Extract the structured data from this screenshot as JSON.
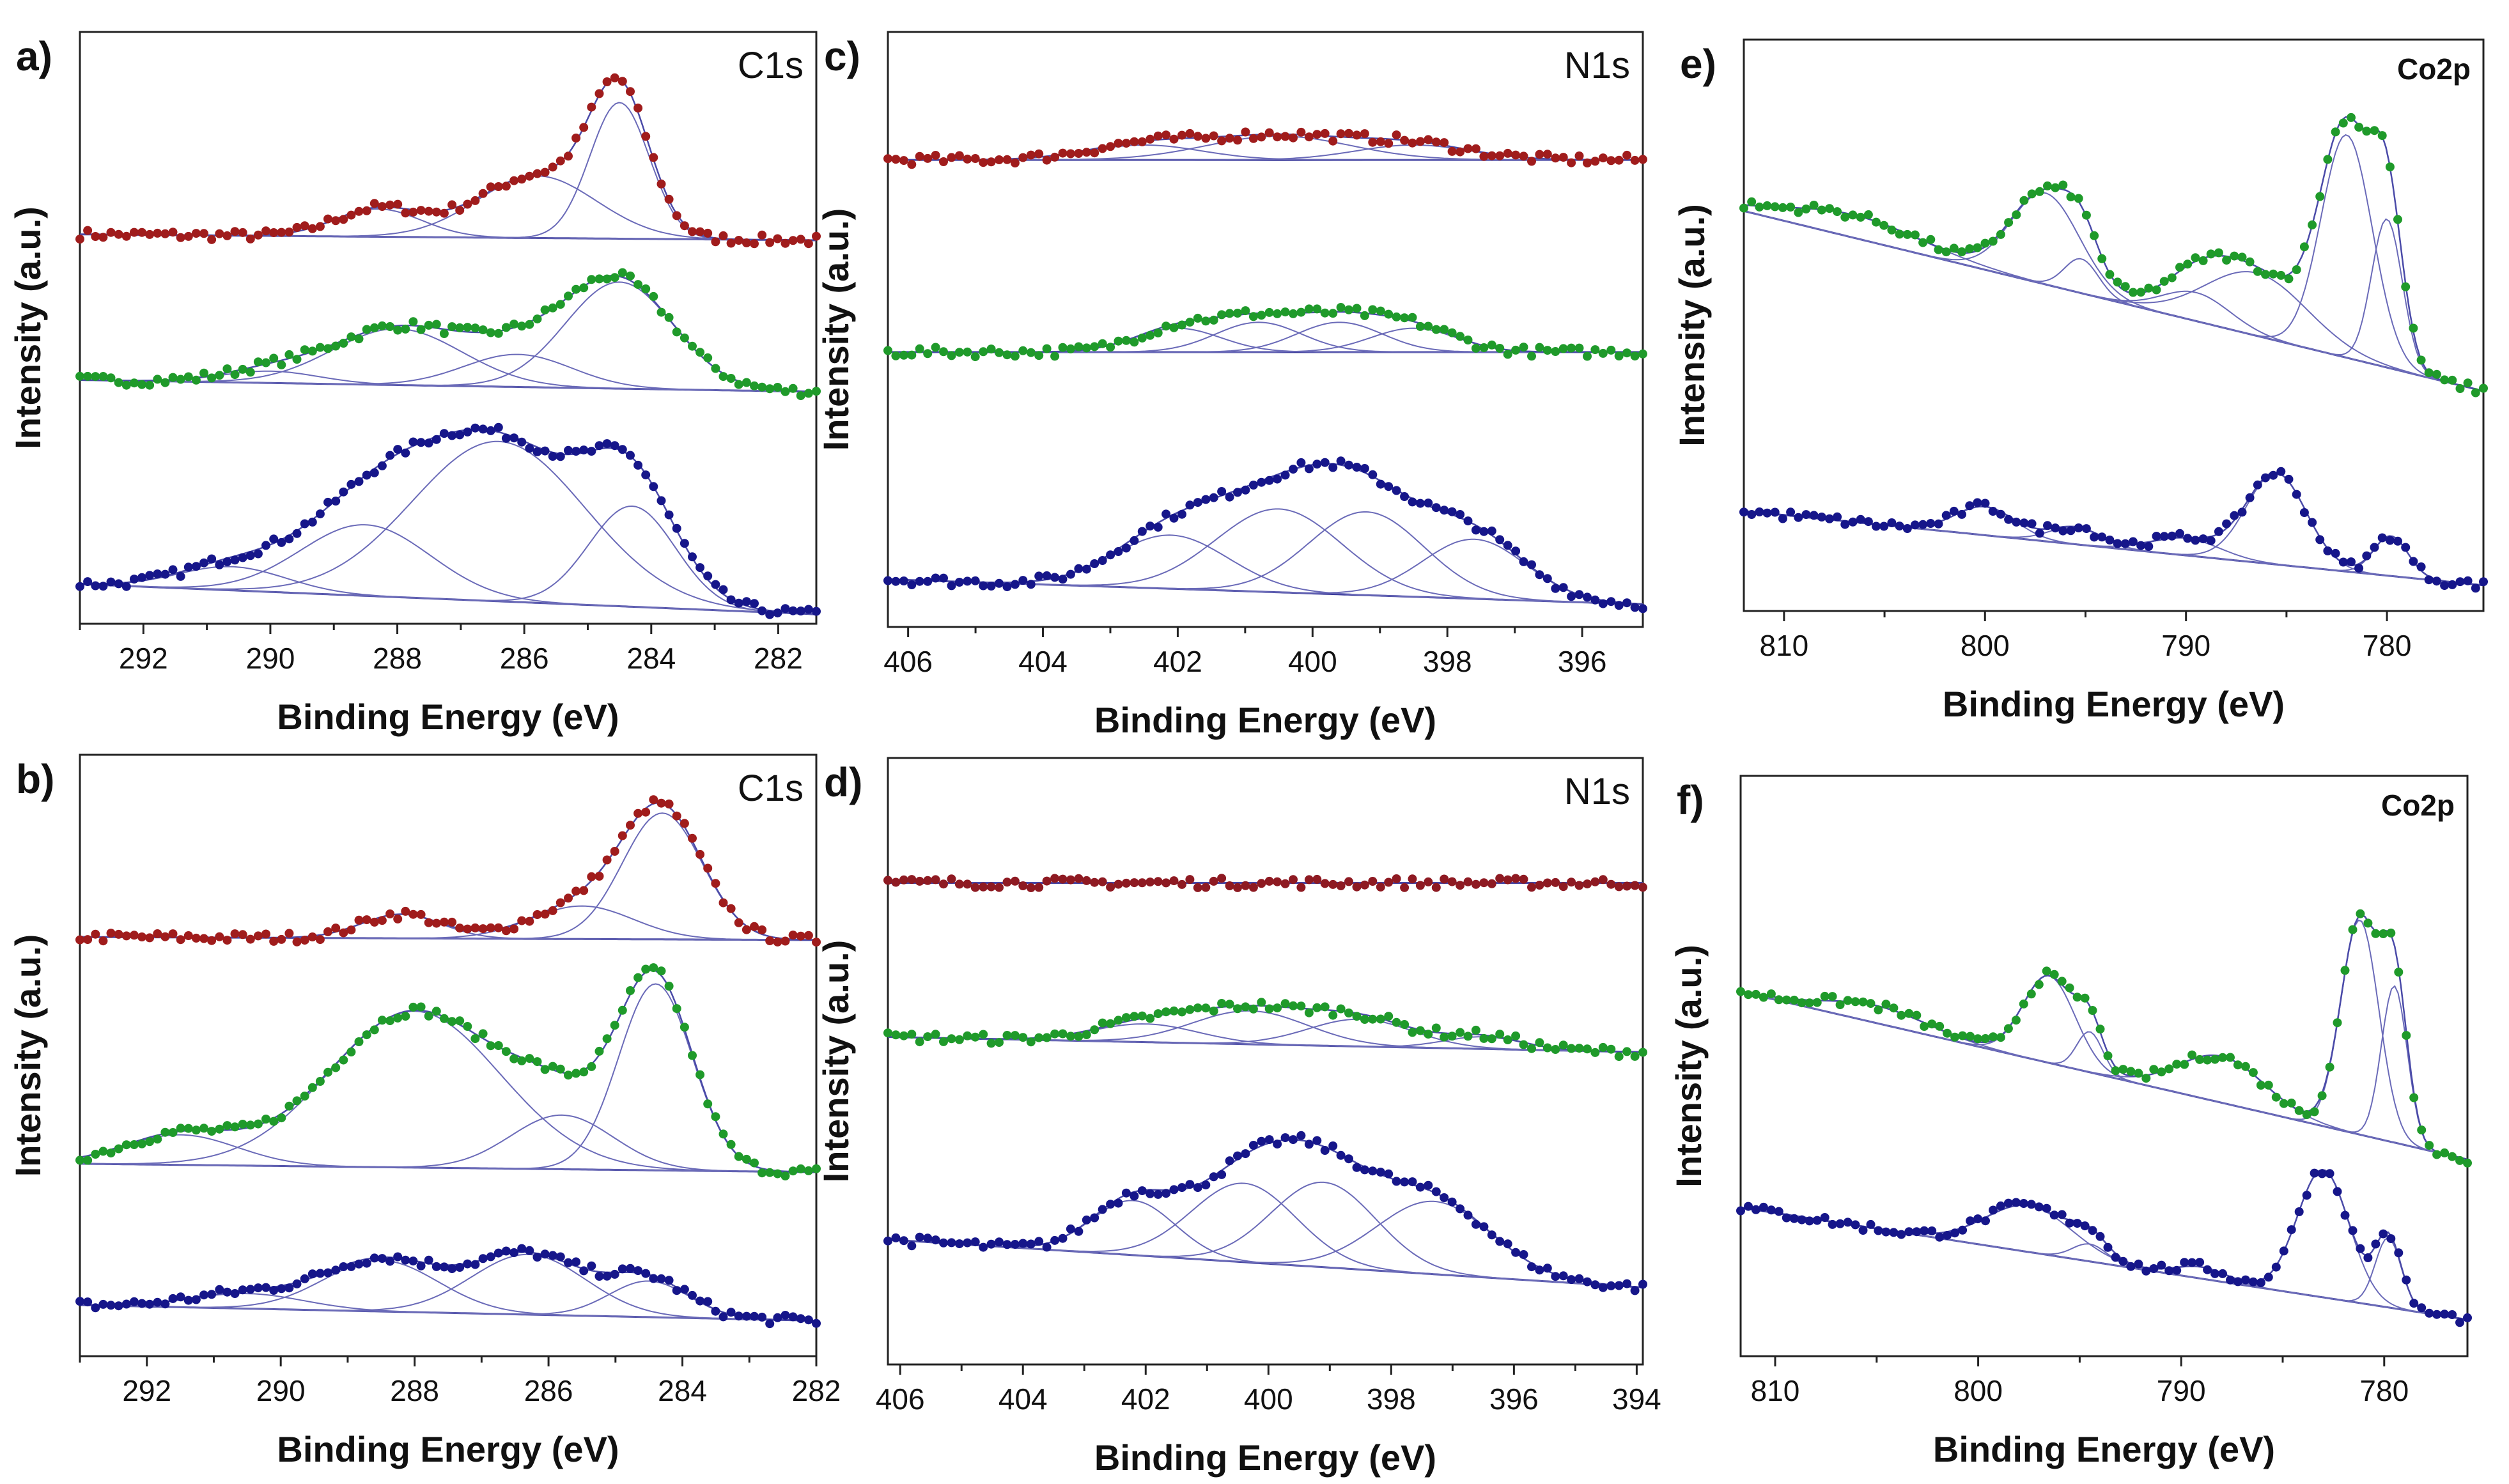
{
  "chart_data": [
    {
      "type": "line",
      "panel_label": "a)",
      "element_label": "C1s",
      "xlabel": "Binding Energy (eV)",
      "ylabel": "Intensity (a.u.)",
      "xlim": [
        293.0,
        281.4
      ],
      "ylim": [
        0,
        100
      ],
      "x_reversed": true,
      "ticks": [
        292,
        290,
        288,
        286,
        284,
        282
      ],
      "grid": false,
      "spectra": [
        {
          "color": "#a01c1c",
          "baseline": [
            65.8,
            64.8
          ],
          "peaks": [
            [
              284.5,
              23,
              1.1
            ],
            [
              285.8,
              10.5,
              2.2
            ],
            [
              288.3,
              4.7,
              1.6
            ]
          ]
        },
        {
          "color": "#1f9a2a",
          "baseline": [
            41.2,
            39.2
          ],
          "peaks": [
            [
              284.5,
              18,
              2.0
            ],
            [
              288.0,
              9.5,
              2.4
            ],
            [
              286.1,
              5.5,
              2.0
            ],
            [
              290.0,
              2,
              1.8
            ]
          ]
        },
        {
          "color": "#16168a",
          "baseline": [
            6.7,
            1.6
          ],
          "peaks": [
            [
              286.4,
              27,
              3.2
            ],
            [
              288.5,
              12,
              2.4
            ],
            [
              284.3,
              17,
              1.6
            ],
            [
              290.6,
              4,
              2.0
            ]
          ]
        }
      ]
    },
    {
      "type": "line",
      "panel_label": "b)",
      "element_label": "C1s",
      "xlabel": "Binding Energy (eV)",
      "ylabel": "Intensity (a.u.)",
      "xlim": [
        293.0,
        282.0
      ],
      "ylim": [
        0,
        100
      ],
      "x_reversed": true,
      "ticks": [
        292,
        290,
        288,
        286,
        284,
        282
      ],
      "grid": false,
      "spectra": [
        {
          "color": "#a01c1c",
          "baseline": [
            69.7,
            69.2
          ],
          "peaks": [
            [
              284.3,
              21,
              1.4
            ],
            [
              285.5,
              5.5,
              1.8
            ],
            [
              288.2,
              4,
              1.4
            ]
          ]
        },
        {
          "color": "#1f9a2a",
          "baseline": [
            32.0,
            30.6
          ],
          "peaks": [
            [
              284.4,
              31,
              1.3
            ],
            [
              288.0,
              26,
              3.0
            ],
            [
              285.8,
              9,
              1.8
            ],
            [
              291.5,
              5,
              2.0
            ]
          ]
        },
        {
          "color": "#16168a",
          "baseline": [
            8.5,
            5.9
          ],
          "peaks": [
            [
              286.3,
              10,
              2.0
            ],
            [
              288.5,
              8.5,
              2.0
            ],
            [
              284.5,
              6,
              1.4
            ],
            [
              290.5,
              2.5,
              2.0
            ]
          ]
        }
      ]
    },
    {
      "type": "line",
      "panel_label": "c)",
      "element_label": "N1s",
      "xlabel": "Binding Energy (eV)",
      "ylabel": "Intensity (a.u.)",
      "xlim": [
        406.3,
        395.1
      ],
      "ylim": [
        0,
        100
      ],
      "x_reversed": true,
      "ticks": [
        406,
        404,
        402,
        400,
        398,
        396
      ],
      "grid": false,
      "spectra": [
        {
          "color": "#a01c1c",
          "baseline": [
            78.5,
            78.5
          ],
          "peaks": [
            [
              400.5,
              4,
              2.5
            ],
            [
              402.5,
              2.5,
              2.0
            ],
            [
              398.5,
              2.5,
              2.0
            ]
          ]
        },
        {
          "color": "#1f9a2a",
          "baseline": [
            46.2,
            46.2
          ],
          "peaks": [
            [
              402.0,
              4,
              1.5
            ],
            [
              400.8,
              5,
              1.5
            ],
            [
              399.6,
              5,
              1.5
            ],
            [
              398.5,
              4,
              1.5
            ]
          ]
        },
        {
          "color": "#16168a",
          "baseline": [
            8.0,
            3.8
          ],
          "peaks": [
            [
              402.1,
              9,
              2.0
            ],
            [
              400.5,
              14,
              2.2
            ],
            [
              399.2,
              14,
              2.0
            ],
            [
              397.6,
              10,
              1.8
            ]
          ]
        }
      ]
    },
    {
      "type": "line",
      "panel_label": "d)",
      "element_label": "N1s",
      "xlabel": "Binding Energy (eV)",
      "ylabel": "Intensity (a.u.)",
      "xlim": [
        406.2,
        393.9
      ],
      "ylim": [
        0,
        100
      ],
      "x_reversed": true,
      "ticks": [
        406,
        404,
        402,
        400,
        398,
        396,
        394
      ],
      "grid": false,
      "spectra": [
        {
          "color": "#8e1a22",
          "baseline": [
            79.4,
            79.4
          ],
          "peaks": []
        },
        {
          "color": "#1f9a2a",
          "baseline": [
            54.0,
            51.5
          ],
          "peaks": [
            [
              400.3,
              5.5,
              2.2
            ],
            [
              398.5,
              4.5,
              2.0
            ],
            [
              402.0,
              3,
              2.0
            ],
            [
              396.5,
              2,
              1.5
            ]
          ]
        },
        {
          "color": "#16168a",
          "baseline": [
            20.6,
            12.7
          ],
          "peaks": [
            [
              402.2,
              9,
              1.6
            ],
            [
              400.4,
              13,
              2.0
            ],
            [
              399.1,
              14,
              2.0
            ],
            [
              397.3,
              12,
              2.2
            ]
          ]
        }
      ]
    },
    {
      "type": "line",
      "panel_label": "e)",
      "element_label": "Co2p",
      "xlabel": "Binding Energy (eV)",
      "ylabel": "Intensity (a.u.)",
      "xlim": [
        812.0,
        775.2
      ],
      "ylim": [
        0,
        100
      ],
      "x_reversed": true,
      "ticks": [
        810,
        800,
        790,
        780
      ],
      "grid": false,
      "spectra": [
        {
          "color": "#1f9a2a",
          "baseline": [
            70.0,
            38.5
          ],
          "peaks": [
            [
              806.5,
              4,
              8
            ],
            [
              797.0,
              16,
              4.0
            ],
            [
              795.2,
              6,
              2.0
            ],
            [
              789.5,
              5,
              4.0
            ],
            [
              786.5,
              11,
              6.0
            ],
            [
              782.0,
              39,
              3.0
            ],
            [
              780.0,
              26,
              1.8
            ]
          ]
        },
        {
          "color": "#16168a",
          "baseline": [
            17.5,
            4.5
          ],
          "peaks": [
            [
              800.0,
              5,
              3.5
            ],
            [
              795.5,
              3,
              3.0
            ],
            [
              790.0,
              3,
              4.0
            ],
            [
              785.5,
              16,
              3.5
            ],
            [
              779.8,
              7,
              2.0
            ]
          ]
        }
      ]
    },
    {
      "type": "line",
      "panel_label": "f)",
      "element_label": "Co2p",
      "xlabel": "Binding Energy (eV)",
      "ylabel": "Intensity (a.u.)",
      "xlim": [
        811.7,
        775.9
      ],
      "ylim": [
        0,
        100
      ],
      "x_reversed": true,
      "ticks": [
        810,
        800,
        790,
        780
      ],
      "grid": false,
      "spectra": [
        {
          "color": "#1f9a2a",
          "baseline": [
            62.8,
            33.9
          ],
          "peaks": [
            [
              805.0,
              3,
              6
            ],
            [
              796.5,
              15,
              3.0
            ],
            [
              794.5,
              7,
              1.5
            ],
            [
              788.0,
              8,
              5.0
            ],
            [
              781.2,
              37,
              2.2
            ],
            [
              779.5,
              27,
              1.5
            ]
          ]
        },
        {
          "color": "#16168a",
          "baseline": [
            25.6,
            6.3
          ],
          "peaks": [
            [
              797.5,
              8,
              5.0
            ],
            [
              794.5,
              3,
              2.0
            ],
            [
              789.0,
              2,
              3.0
            ],
            [
              783.0,
              22,
              3.0
            ],
            [
              779.8,
              12,
              1.5
            ]
          ]
        }
      ]
    }
  ]
}
